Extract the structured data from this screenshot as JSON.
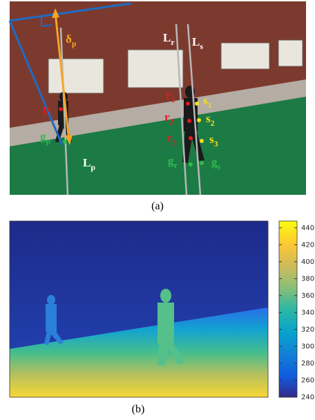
{
  "panel_a": {
    "caption": "(a)",
    "labels": [
      {
        "main": "δ",
        "sub": "p"
      },
      {
        "main": "L",
        "sub": "r"
      },
      {
        "main": "L",
        "sub": "s"
      },
      {
        "main": "r",
        "sub": "1"
      },
      {
        "main": "r",
        "sub": "2"
      },
      {
        "main": "r",
        "sub": "3"
      },
      {
        "main": "s",
        "sub": "1"
      },
      {
        "main": "s",
        "sub": "2"
      },
      {
        "main": "s",
        "sub": "3"
      },
      {
        "main": "p"
      },
      {
        "main": "g",
        "sub": "p"
      },
      {
        "main": "g",
        "sub": "r"
      },
      {
        "main": "g",
        "sub": "s"
      },
      {
        "main": "L",
        "sub": "p"
      }
    ]
  },
  "panel_b": {
    "caption": "(b)",
    "colorbar": {
      "lim": [
        240,
        448
      ],
      "ticks": [
        240,
        260,
        280,
        300,
        320,
        340,
        360,
        380,
        400,
        420,
        440
      ]
    }
  }
}
